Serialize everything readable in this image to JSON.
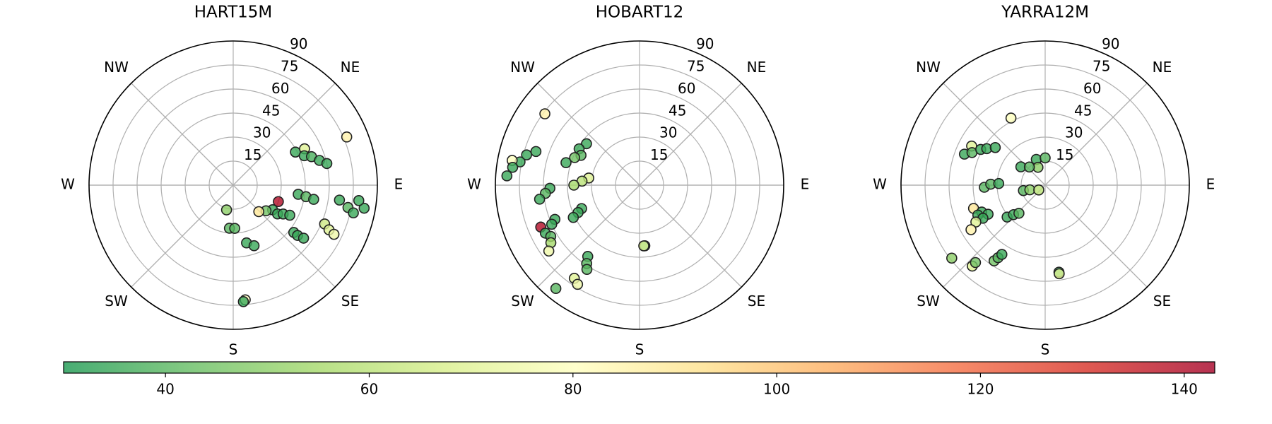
{
  "chart_data": [
    {
      "type": "scatter",
      "polar": true,
      "title": "HART15M",
      "theta_zero": "N",
      "theta_direction": "clockwise",
      "grid": true,
      "xlim": [
        0,
        360
      ],
      "ylim": [
        0,
        90
      ],
      "xticks": [
        {
          "value": 45,
          "label": "NE"
        },
        {
          "value": 90,
          "label": "E"
        },
        {
          "value": 135,
          "label": "SE"
        },
        {
          "value": 180,
          "label": "S"
        },
        {
          "value": 225,
          "label": "SW"
        },
        {
          "value": 270,
          "label": "W"
        },
        {
          "value": 315,
          "label": "NW"
        }
      ],
      "yticks": [
        15,
        30,
        45,
        60,
        75,
        90
      ],
      "x": [
        67,
        62,
        63,
        67.5,
        70,
        74,
        77,
        98,
        99,
        100,
        98,
        101,
        103,
        100,
        97,
        110,
        122,
        123,
        120,
        118,
        128,
        136,
        113,
        115,
        116,
        128,
        128,
        127,
        195,
        185,
        178,
        167,
        161,
        174,
        175
      ],
      "y": [
        77,
        44,
        50,
        48,
        52,
        56,
        60,
        41,
        46,
        51,
        67,
        73,
        77,
        83,
        79,
        30,
        29,
        33,
        36,
        40,
        26,
        23,
        62,
        66,
        70,
        48,
        51,
        55,
        16,
        27,
        27,
        37,
        40,
        72,
        73
      ],
      "c": [
        85,
        35,
        70,
        35,
        38,
        35,
        35,
        35,
        40,
        35,
        35,
        40,
        35,
        35,
        35,
        140,
        35,
        35,
        35,
        35,
        45,
        90,
        65,
        70,
        75,
        35,
        35,
        35,
        50,
        40,
        40,
        35,
        35,
        80,
        35
      ]
    },
    {
      "type": "scatter",
      "polar": true,
      "title": "HOBART12",
      "theta_zero": "N",
      "theta_direction": "clockwise",
      "grid": true,
      "xlim": [
        0,
        360
      ],
      "ylim": [
        0,
        90
      ],
      "xticks": [
        {
          "value": 45,
          "label": "NE"
        },
        {
          "value": 90,
          "label": "E"
        },
        {
          "value": 135,
          "label": "SE"
        },
        {
          "value": 180,
          "label": "S"
        },
        {
          "value": 225,
          "label": "SW"
        },
        {
          "value": 270,
          "label": "W"
        },
        {
          "value": 315,
          "label": "NW"
        }
      ],
      "yticks": [
        15,
        30,
        45,
        60,
        75,
        90
      ],
      "x": [
        307,
        288,
        285,
        281,
        281,
        278,
        274,
        308,
        301,
        297,
        293,
        287,
        278,
        274,
        270,
        268,
        265,
        262,
        248,
        246,
        244,
        248,
        246,
        247,
        243,
        240,
        237,
        234,
        216,
        214,
        212,
        215,
        212,
        219,
        175,
        176
      ],
      "y": [
        74,
        68,
        73,
        76,
        81,
        80,
        83,
        42,
        44,
        41,
        44,
        48,
        32,
        36,
        41,
        56,
        59,
        63,
        39,
        42,
        46,
        57,
        60,
        67,
        66,
        64,
        66,
        70,
        55,
        59,
        62,
        71,
        73,
        83,
        38,
        38
      ],
      "c": [
        85,
        35,
        35,
        35,
        80,
        35,
        35,
        35,
        35,
        40,
        45,
        35,
        70,
        60,
        55,
        35,
        40,
        35,
        35,
        35,
        35,
        35,
        35,
        140,
        35,
        40,
        55,
        75,
        35,
        40,
        40,
        70,
        75,
        40,
        35,
        70
      ]
    },
    {
      "type": "scatter",
      "polar": true,
      "title": "YARRA12M",
      "theta_zero": "N",
      "theta_direction": "clockwise",
      "grid": true,
      "xlim": [
        0,
        360
      ],
      "ylim": [
        0,
        90
      ],
      "xticks": [
        {
          "value": 45,
          "label": "NE"
        },
        {
          "value": 90,
          "label": "E"
        },
        {
          "value": 135,
          "label": "SE"
        },
        {
          "value": 180,
          "label": "S"
        },
        {
          "value": 225,
          "label": "SW"
        },
        {
          "value": 270,
          "label": "W"
        },
        {
          "value": 315,
          "label": "NW"
        }
      ],
      "yticks": [
        15,
        30,
        45,
        60,
        75,
        90
      ],
      "x": [
        333,
        291,
        298,
        294,
        299,
        302,
        307,
        307,
        341,
        0,
        338,
        319,
        268,
        271,
        272,
        256,
        253,
        233,
        252,
        247,
        243,
        246,
        242,
        242,
        239,
        230,
        227,
        223,
        232,
        222,
        222,
        214,
        213,
        212,
        171,
        171
      ],
      "y": [
        47,
        54,
        52,
        50,
        46,
        43,
        39,
        19,
        17,
        17,
        12,
        15,
        38,
        34,
        29,
        14,
        10,
        5,
        47,
        43,
        40,
        46,
        44,
        49,
        54,
        31,
        27,
        24,
        74,
        68,
        65,
        57,
        54,
        51,
        55,
        56
      ],
      "c": [
        80,
        35,
        70,
        40,
        35,
        35,
        35,
        35,
        35,
        40,
        50,
        40,
        40,
        40,
        35,
        40,
        50,
        60,
        90,
        35,
        35,
        35,
        35,
        70,
        85,
        35,
        35,
        40,
        50,
        70,
        45,
        45,
        40,
        35,
        35,
        70
      ]
    }
  ],
  "colorbar": {
    "lim": [
      30,
      143
    ],
    "ticks": [
      40,
      60,
      80,
      100,
      120,
      140
    ],
    "colormap": [
      "#1a9850",
      "#66bd63",
      "#a6d96a",
      "#d9ef8b",
      "#ffffbf",
      "#fee08b",
      "#fdae61",
      "#f46d43",
      "#d73027",
      "#a50026"
    ],
    "alpha": 0.8
  }
}
